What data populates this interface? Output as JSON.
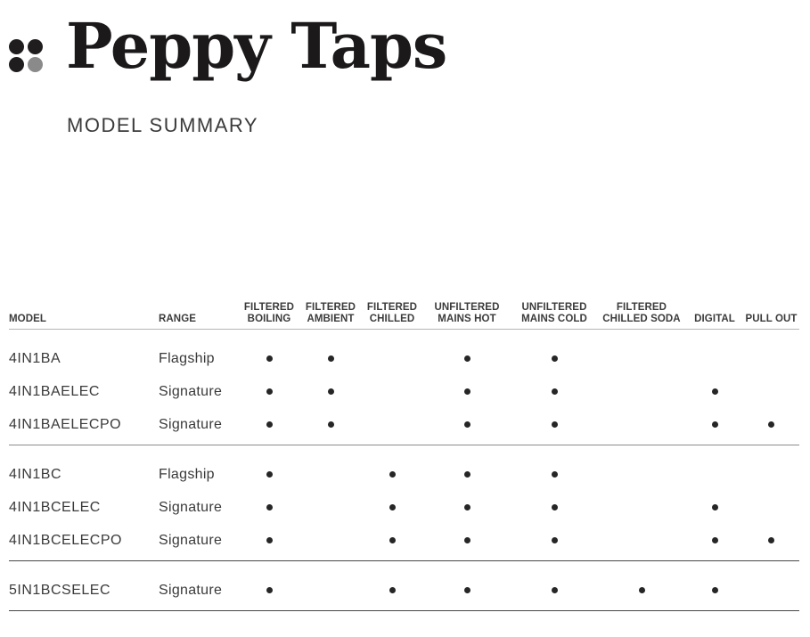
{
  "brand": {
    "title": "Peppy Taps",
    "subtitle": "MODEL SUMMARY",
    "logo_dot_colors": [
      "#201d1e",
      "#201d1e",
      "#201d1e",
      "#8a8a8a"
    ]
  },
  "colors": {
    "ink": "#1c191a",
    "text": "#3a3a3a",
    "header_text": "#3b3b3b",
    "dot": "#262626",
    "logo_gray": "#8a8a8a",
    "line_light": "#b5b5b5",
    "line_medium": "#8c8c8c",
    "line_dark": "#474747"
  },
  "table": {
    "columns": [
      {
        "id": "model",
        "label": "MODEL"
      },
      {
        "id": "range",
        "label": "RANGE"
      },
      {
        "id": "filtered-boiling",
        "label": "FILTERED\nBOILING"
      },
      {
        "id": "filtered-ambient",
        "label": "FILTERED\nAMBIENT"
      },
      {
        "id": "filtered-chilled",
        "label": "FILTERED\nCHILLED"
      },
      {
        "id": "unfiltered-mains-hot",
        "label": "UNFILTERED\nMAINS HOT"
      },
      {
        "id": "unfiltered-mains-cold",
        "label": "UNFILTERED\nMAINS COLD"
      },
      {
        "id": "filtered-chilled-soda",
        "label": "FILTERED\nCHILLED SODA"
      },
      {
        "id": "digital",
        "label": "DIGITAL"
      },
      {
        "id": "pull-out",
        "label": "PULL OUT"
      }
    ],
    "feature_keys": [
      "filtered-boiling",
      "filtered-ambient",
      "filtered-chilled",
      "unfiltered-mains-hot",
      "unfiltered-mains-cold",
      "filtered-chilled-soda",
      "digital",
      "pull-out"
    ],
    "groups": [
      {
        "rows": [
          {
            "model": "4IN1BA",
            "range": "Flagship",
            "features": [
              1,
              1,
              0,
              1,
              1,
              0,
              0,
              0
            ]
          },
          {
            "model": "4IN1BAELEC",
            "range": "Signature",
            "features": [
              1,
              1,
              0,
              1,
              1,
              0,
              1,
              0
            ]
          },
          {
            "model": "4IN1BAELECPO",
            "range": "Signature",
            "features": [
              1,
              1,
              0,
              1,
              1,
              0,
              1,
              1
            ]
          }
        ]
      },
      {
        "rows": [
          {
            "model": "4IN1BC",
            "range": "Flagship",
            "features": [
              1,
              0,
              1,
              1,
              1,
              0,
              0,
              0
            ]
          },
          {
            "model": "4IN1BCELEC",
            "range": "Signature",
            "features": [
              1,
              0,
              1,
              1,
              1,
              0,
              1,
              0
            ]
          },
          {
            "model": "4IN1BCELECPO",
            "range": "Signature",
            "features": [
              1,
              0,
              1,
              1,
              1,
              0,
              1,
              1
            ]
          }
        ]
      },
      {
        "rows": [
          {
            "model": "5IN1BCSELEC",
            "range": "Signature",
            "features": [
              1,
              0,
              1,
              1,
              1,
              1,
              1,
              0
            ]
          }
        ]
      }
    ]
  }
}
